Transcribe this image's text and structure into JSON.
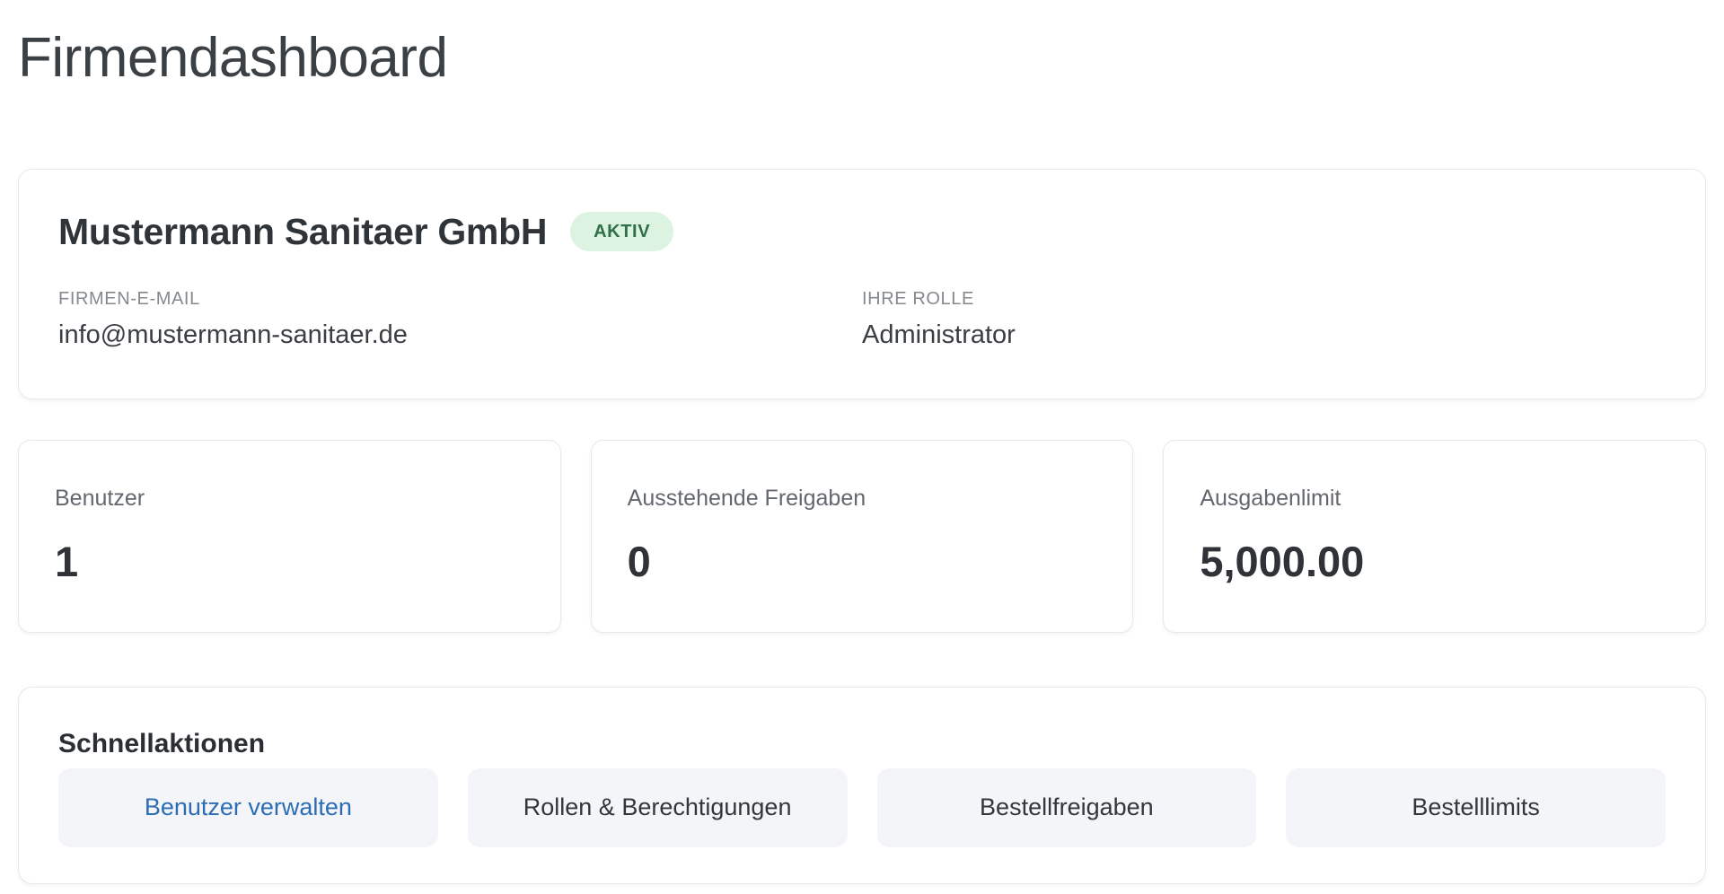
{
  "page": {
    "title": "Firmendashboard"
  },
  "company_card": {
    "name": "Mustermann Sanitaer GmbH",
    "status_badge": "AKTIV",
    "fields": [
      {
        "label": "FIRMEN-E-MAIL",
        "value": "info@mustermann-sanitaer.de"
      },
      {
        "label": "IHRE ROLLE",
        "value": "Administrator"
      }
    ]
  },
  "stats": [
    {
      "label": "Benutzer",
      "value": "1"
    },
    {
      "label": "Ausstehende Freigaben",
      "value": "0"
    },
    {
      "label": "Ausgabenlimit",
      "value": "5,000.00"
    }
  ],
  "quick_actions": {
    "title": "Schnellaktionen",
    "buttons": [
      {
        "label": "Benutzer verwalten"
      },
      {
        "label": "Rollen & Berechtigungen"
      },
      {
        "label": "Bestellfreigaben"
      },
      {
        "label": "Bestelllimits"
      }
    ]
  },
  "colors": {
    "badge_bg": "#ddf3e2",
    "badge_text": "#2f7048",
    "link_blue": "#2c6db4",
    "quick_button_bg": "#f3f5f9",
    "card_border": "#e7e8ea"
  }
}
